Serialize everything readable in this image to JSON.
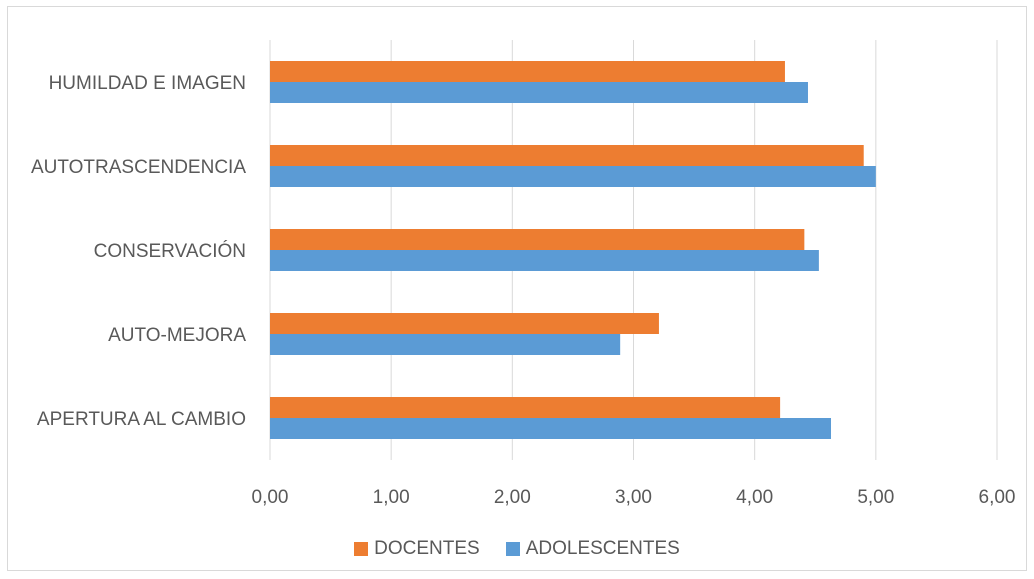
{
  "chart_data": {
    "type": "bar",
    "orientation": "horizontal",
    "categories": [
      "HUMILDAD E IMAGEN",
      "AUTOTRASCENDENCIA",
      "CONSERVACIÓN",
      "AUTO-MEJORA",
      "APERTURA AL CAMBIO"
    ],
    "series": [
      {
        "name": "DOCENTES",
        "color": "#ED7D31",
        "values": [
          4.25,
          4.9,
          4.41,
          3.21,
          4.21
        ]
      },
      {
        "name": "ADOLESCENTES",
        "color": "#5B9BD5",
        "values": [
          4.44,
          5.0,
          4.53,
          2.89,
          4.63
        ]
      }
    ],
    "x_ticks": [
      "0,00",
      "1,00",
      "2,00",
      "3,00",
      "4,00",
      "5,00",
      "6,00"
    ],
    "xlim": [
      0,
      6
    ],
    "grid": true,
    "legend_position": "bottom",
    "title": "",
    "xlabel": "",
    "ylabel": ""
  }
}
